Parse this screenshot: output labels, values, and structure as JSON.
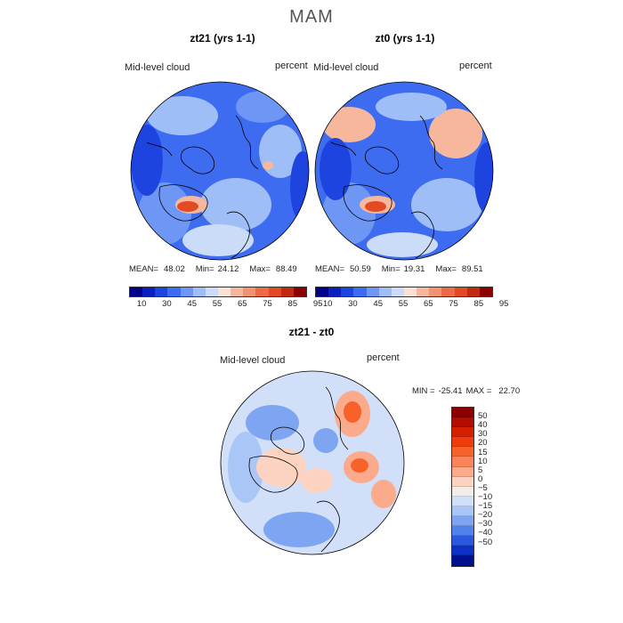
{
  "season": "MAM",
  "panels": [
    {
      "title": "zt21 (yrs 1-1)",
      "variable": "Mid-level cloud",
      "units": "percent",
      "mean_label": "MEAN=",
      "mean": "48.02",
      "min_label": "Min=",
      "min": "24.12",
      "max_label": "Max=",
      "max": "88.49"
    },
    {
      "title": "zt0 (yrs 1-1)",
      "variable": "Mid-level cloud",
      "units": "percent",
      "mean_label": "MEAN=",
      "mean": "50.59",
      "min_label": "Min=",
      "min": "19.31",
      "max_label": "Max=",
      "max": "89.51"
    }
  ],
  "field_colorbar": {
    "ticks": [
      "10",
      "30",
      "45",
      "55",
      "65",
      "75",
      "85",
      "95"
    ],
    "colors": [
      "#00008b",
      "#0a1fbf",
      "#1e44e0",
      "#3e6cf0",
      "#6e97f5",
      "#9fbdf7",
      "#cbdcf8",
      "#fbe1d4",
      "#f7b79c",
      "#f39270",
      "#ec6a45",
      "#e14a22",
      "#c02a10",
      "#8b0000"
    ]
  },
  "difference": {
    "title": "zt21 - zt0",
    "variable": "Mid-level cloud",
    "units": "percent",
    "min_label": "MIN =",
    "min": "-25.41",
    "max_label": "MAX =",
    "max": "22.70",
    "colorbar": {
      "ticks": [
        "50",
        "40",
        "30",
        "20",
        "15",
        "10",
        "5",
        "0",
        "−5",
        "−10",
        "−15",
        "−20",
        "−30",
        "−40",
        "−50"
      ],
      "colors": [
        "#8b0000",
        "#b30d00",
        "#d42000",
        "#f03c0a",
        "#f7622b",
        "#f9845a",
        "#fbab8c",
        "#fcd3c0",
        "#f2ede8",
        "#d1e0f8",
        "#a9c6f6",
        "#7da5f2",
        "#5182ec",
        "#2a58e0",
        "#0f30c4",
        "#00108e"
      ]
    }
  },
  "colors": {
    "map_base": "#3e6cf0",
    "coast": "#000000"
  }
}
